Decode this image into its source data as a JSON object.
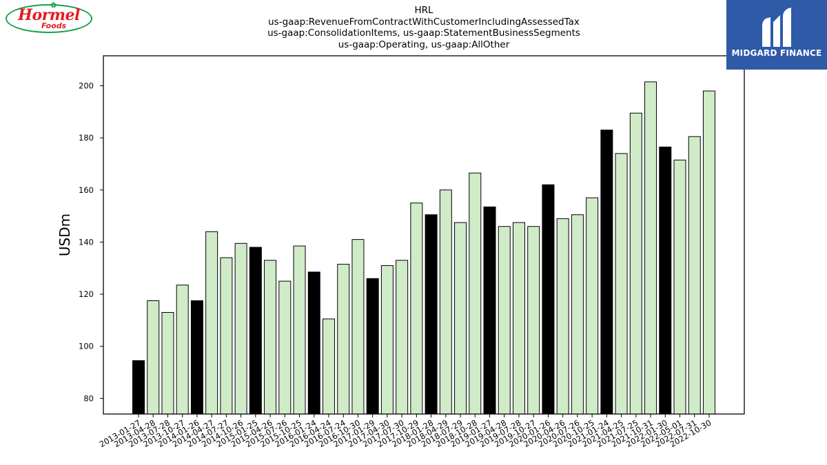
{
  "chart_data": {
    "type": "bar",
    "title_lines": [
      "HRL",
      "us-gaap:RevenueFromContractWithCustomerIncludingAssessedTax",
      "us-gaap:ConsolidationItems, us-gaap:StatementBusinessSegments",
      "us-gaap:Operating, us-gaap:AllOther"
    ],
    "ylabel": "USDm",
    "xlabel": "",
    "ylim": [
      74,
      211.5
    ],
    "yticks": [
      80,
      100,
      120,
      140,
      160,
      180,
      200
    ],
    "grid": false,
    "categories": [
      "2013-01-27",
      "2013-04-28",
      "2013-07-28",
      "2013-10-27",
      "2014-01-26",
      "2014-04-27",
      "2014-07-27",
      "2014-10-26",
      "2015-01-25",
      "2015-04-26",
      "2015-07-26",
      "2015-10-25",
      "2016-01-24",
      "2016-04-24",
      "2016-07-24",
      "2016-10-30",
      "2017-01-29",
      "2017-04-30",
      "2017-07-30",
      "2017-10-29",
      "2018-01-28",
      "2018-04-29",
      "2018-07-29",
      "2018-10-28",
      "2019-01-27",
      "2019-04-28",
      "2019-07-28",
      "2019-10-27",
      "2020-01-26",
      "2020-04-26",
      "2020-07-26",
      "2020-10-25",
      "2021-01-24",
      "2021-04-25",
      "2021-07-25",
      "2021-10-31",
      "2022-01-30",
      "2022-05-01",
      "2022-07-31",
      "2022-10-30"
    ],
    "values": [
      94.5,
      117.5,
      113.0,
      123.5,
      117.5,
      144.0,
      134.0,
      139.5,
      138.0,
      133.0,
      125.0,
      138.5,
      128.5,
      110.5,
      131.5,
      141.0,
      126.0,
      131.0,
      133.0,
      155.0,
      150.5,
      160.0,
      147.5,
      166.5,
      153.5,
      146.0,
      147.5,
      146.0,
      162.0,
      149.0,
      150.5,
      157.0,
      183.0,
      174.0,
      189.5,
      201.5,
      176.5,
      171.5,
      180.5,
      198.0
    ],
    "highlight": [
      true,
      false,
      false,
      false,
      true,
      false,
      false,
      false,
      true,
      false,
      false,
      false,
      true,
      false,
      false,
      false,
      true,
      false,
      false,
      false,
      true,
      false,
      false,
      false,
      true,
      false,
      false,
      false,
      true,
      false,
      false,
      false,
      true,
      false,
      false,
      false,
      true,
      false,
      false,
      false
    ],
    "colors": {
      "normal": "#d0ebc8",
      "highlight": "#000000",
      "edge": "#000000"
    }
  },
  "logos": {
    "left": {
      "brand": "Hormel",
      "sub": "Foods"
    },
    "right": {
      "name": "MIDGARD FINANCE"
    }
  }
}
